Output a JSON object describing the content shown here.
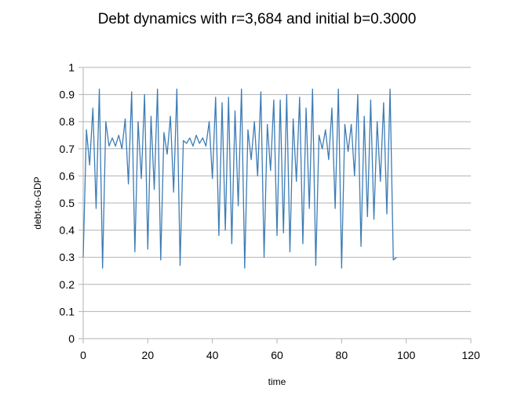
{
  "chart_data": {
    "type": "line",
    "title": "Debt dynamics with r=3,684 and initial b=0.3000",
    "xlabel": "time",
    "ylabel": "debt-to-GDP",
    "xlim": [
      0,
      120
    ],
    "ylim": [
      0,
      1
    ],
    "x_ticks": [
      "0",
      "20",
      "40",
      "60",
      "80",
      "100",
      "120"
    ],
    "y_ticks": [
      "0",
      "0.1",
      "0.2",
      "0.3",
      "0.4",
      "0.5",
      "0.6",
      "0.7",
      "0.8",
      "0.9",
      "1"
    ],
    "grid": "horizontal",
    "legend": "none",
    "series": [
      {
        "color": "#3d7cb5",
        "x": [
          0,
          1,
          2,
          3,
          4,
          5,
          6,
          7,
          8,
          9,
          10,
          11,
          12,
          13,
          14,
          15,
          16,
          17,
          18,
          19,
          20,
          21,
          22,
          23,
          24,
          25,
          26,
          27,
          28,
          29,
          30,
          31,
          32,
          33,
          34,
          35,
          36,
          37,
          38,
          39,
          40,
          41,
          42,
          43,
          44,
          45,
          46,
          47,
          48,
          49,
          50,
          51,
          52,
          53,
          54,
          55,
          56,
          57,
          58,
          59,
          60,
          61,
          62,
          63,
          64,
          65,
          66,
          67,
          68,
          69,
          70,
          71,
          72,
          73,
          74,
          75,
          76,
          77,
          78,
          79,
          80,
          81,
          82,
          83,
          84,
          85,
          86,
          87,
          88,
          89,
          90,
          91,
          92,
          93,
          94,
          95,
          96,
          97
        ],
        "y": [
          0.3,
          0.77,
          0.64,
          0.85,
          0.48,
          0.92,
          0.26,
          0.8,
          0.71,
          0.74,
          0.71,
          0.75,
          0.7,
          0.81,
          0.57,
          0.91,
          0.32,
          0.8,
          0.59,
          0.9,
          0.33,
          0.82,
          0.55,
          0.92,
          0.29,
          0.76,
          0.68,
          0.82,
          0.54,
          0.92,
          0.27,
          0.73,
          0.72,
          0.74,
          0.71,
          0.75,
          0.72,
          0.74,
          0.71,
          0.8,
          0.59,
          0.89,
          0.38,
          0.87,
          0.4,
          0.89,
          0.35,
          0.84,
          0.49,
          0.92,
          0.26,
          0.77,
          0.66,
          0.8,
          0.6,
          0.91,
          0.3,
          0.79,
          0.62,
          0.88,
          0.38,
          0.88,
          0.39,
          0.9,
          0.32,
          0.81,
          0.58,
          0.89,
          0.35,
          0.85,
          0.48,
          0.92,
          0.27,
          0.75,
          0.7,
          0.77,
          0.66,
          0.85,
          0.48,
          0.92,
          0.26,
          0.79,
          0.69,
          0.79,
          0.6,
          0.9,
          0.34,
          0.82,
          0.45,
          0.88,
          0.44,
          0.8,
          0.58,
          0.87,
          0.46,
          0.92,
          0.29,
          0.3
        ]
      }
    ]
  }
}
